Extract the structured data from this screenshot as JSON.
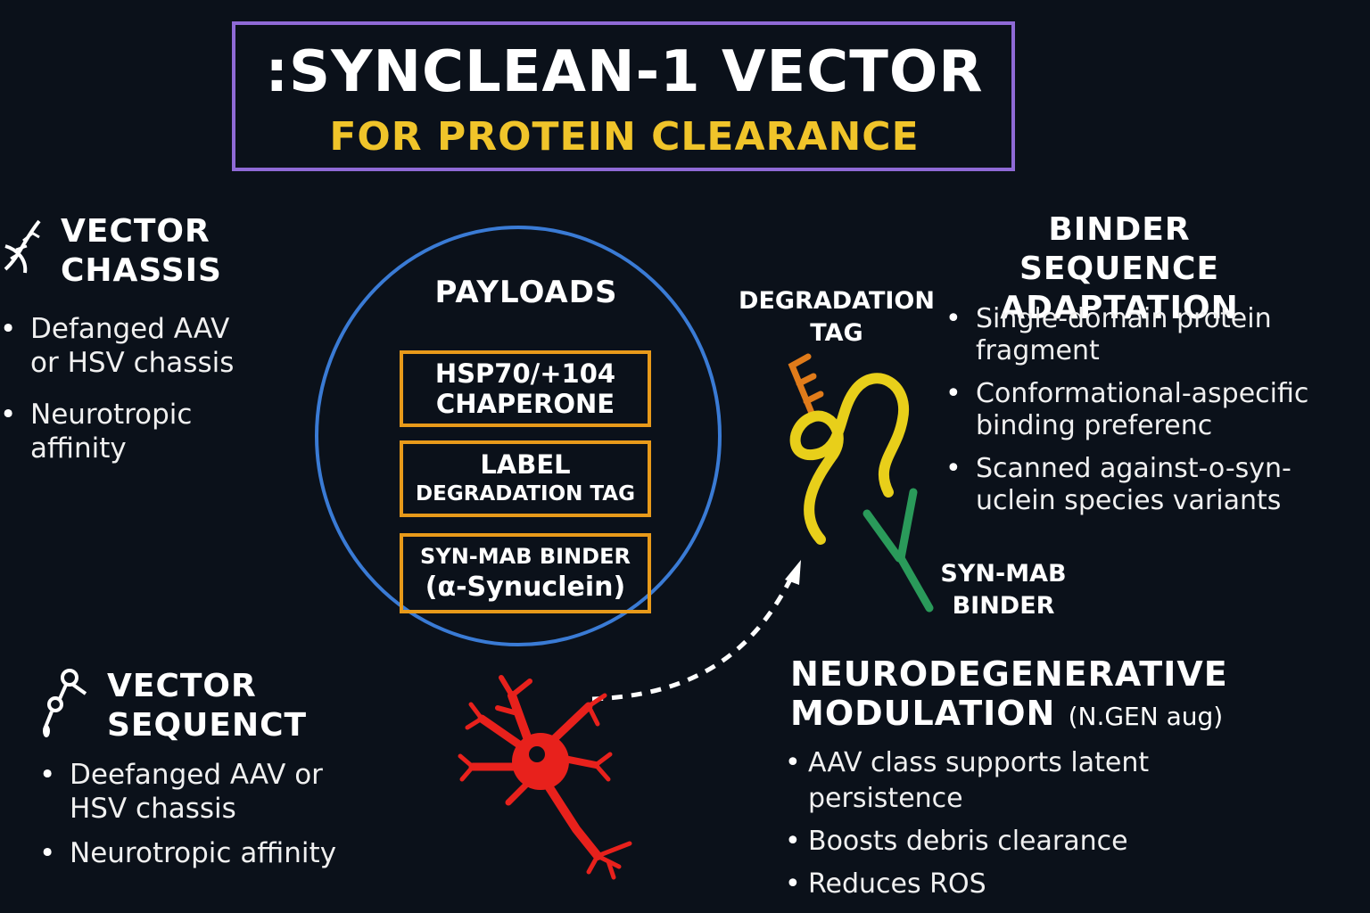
{
  "title": {
    "main": ":SYNCLEAN-1 VECTOR",
    "sub": "FOR PROTEIN CLEARANCE"
  },
  "vector_chassis": {
    "heading_line1": "VECTOR",
    "heading_line2": "CHASSIS",
    "icon": "dna-icon",
    "bullets": [
      "Defanged AAV or HSV chassis",
      "Neurotropic affinity"
    ]
  },
  "vector_sequence": {
    "heading_line1": "VECTOR",
    "heading_line2": "SEQUENCT",
    "icon": "molecule-icon",
    "bullets": [
      "Deefanged AAV or HSV chassis",
      "Neurotropic affinity"
    ]
  },
  "payloads": {
    "heading": "PAYLOADS",
    "items": [
      {
        "line1": "HSP70/+104",
        "line2": "CHAPERONE"
      },
      {
        "line1": "LABEL",
        "line2": "DEGRADATION TAG"
      },
      {
        "line1": "SYN-MAB BINDER",
        "line2": "(α-Synuclein)"
      }
    ]
  },
  "protein_diagram": {
    "tag_label_line1": "DEGRADATION",
    "tag_label_line2": "TAG",
    "binder_label_line1": "SYN-MAB",
    "binder_label_line2": "BINDER"
  },
  "binder_adaptation": {
    "heading_line1": "BINDER SEQUENCE",
    "heading_line2": "ADAPTATION",
    "bullets": [
      "Single-domain protein fragment",
      "Conformational-aspecific binding preferenc",
      "Scanned against-o-syn-uclein species variants"
    ]
  },
  "neuro_modulation": {
    "heading_line1": "NEURODEGENERATIVE",
    "heading_line2": "MODULATION",
    "heading_note": "(N.GEN aug)",
    "bullets": [
      "AAV class supports latent persistence",
      "Boosts debris clearance",
      "Reduces ROS"
    ]
  },
  "colors": {
    "background": "#0b111a",
    "title_border": "#8f6ad6",
    "subtitle": "#f0c42a",
    "circle": "#3a7bd5",
    "payload_border": "#e89a1a",
    "neuron": "#e8211c",
    "protein_chain": "#e8cf1a",
    "tag": "#e07b1a",
    "antibody": "#2a9a5a"
  }
}
